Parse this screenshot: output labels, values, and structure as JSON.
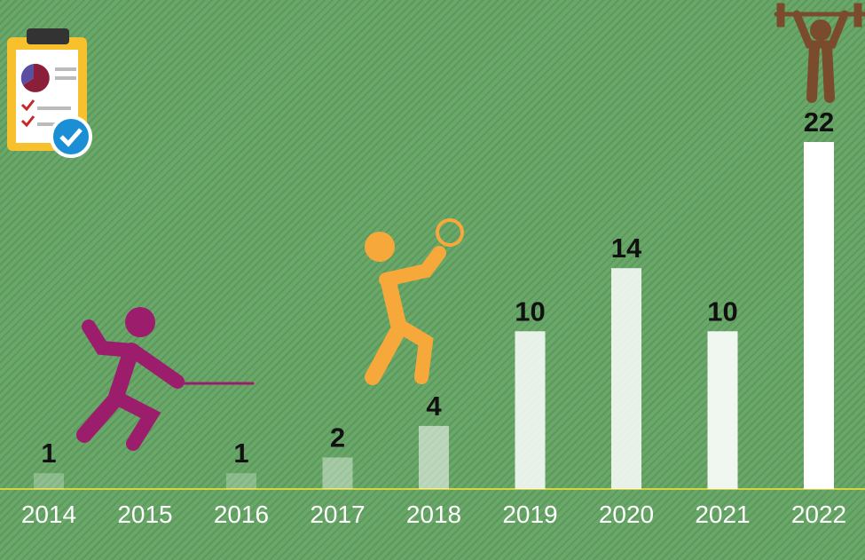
{
  "chart_data": {
    "type": "bar",
    "categories": [
      "2014",
      "2015",
      "2016",
      "2017",
      "2018",
      "2019",
      "2020",
      "2021",
      "2022"
    ],
    "values": [
      1,
      null,
      1,
      2,
      4,
      10,
      14,
      10,
      22
    ],
    "colors": [
      "rgba(255,255,255,0.25)",
      "rgba(255,255,255,0.25)",
      "rgba(255,255,255,0.25)",
      "rgba(255,255,255,0.4)",
      "rgba(255,255,255,0.55)",
      "rgba(255,255,255,0.85)",
      "rgba(255,255,255,0.85)",
      "rgba(255,255,255,0.9)",
      "#ffffff"
    ],
    "grid": false
  }
}
